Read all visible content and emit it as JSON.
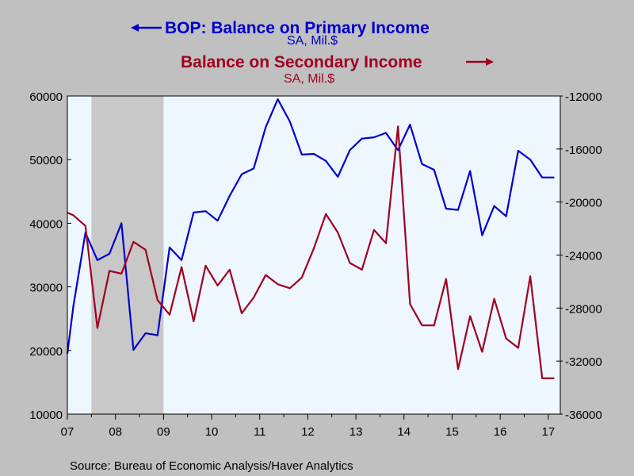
{
  "chart_data": {
    "type": "line",
    "title_left": "BOP: Balance on Primary Income",
    "title_left_units": "SA, Mil.$",
    "title_right": "Balance on Secondary Income",
    "title_right_units": "SA, Mil.$",
    "source": "Source:  Bureau of Economic Analysis/Haver Analytics",
    "x_range": [
      2007.0,
      2017.25
    ],
    "x_tick_labels": [
      "07",
      "08",
      "09",
      "10",
      "11",
      "12",
      "13",
      "14",
      "15",
      "16",
      "17"
    ],
    "x_tick_years": [
      2007,
      2008,
      2009,
      2010,
      2011,
      2012,
      2013,
      2014,
      2015,
      2016,
      2017
    ],
    "recession": {
      "start": 2007.5,
      "end": 2009.0
    },
    "y_left": {
      "min": 10000,
      "max": 60000,
      "ticks": [
        10000,
        20000,
        30000,
        40000,
        50000,
        60000
      ],
      "tick_labels": [
        "10000",
        "20000",
        "30000",
        "40000",
        "50000",
        "60000"
      ]
    },
    "y_right": {
      "min": -36000,
      "max": -12000,
      "ticks": [
        -36000,
        -32000,
        -28000,
        -24000,
        -20000,
        -16000,
        -12000
      ],
      "tick_labels": [
        "-36000",
        "-32000",
        "-28000",
        "-24000",
        "-20000",
        "-16000",
        "-12000"
      ]
    },
    "series": [
      {
        "name": "BOP: Balance on Primary Income",
        "axis": "left",
        "color": "#0000cc",
        "x": [
          2007.0,
          2007.125,
          2007.375,
          2007.625,
          2007.875,
          2008.125,
          2008.375,
          2008.625,
          2008.875,
          2009.125,
          2009.375,
          2009.625,
          2009.875,
          2010.125,
          2010.375,
          2010.625,
          2010.875,
          2011.125,
          2011.375,
          2011.625,
          2011.875,
          2012.125,
          2012.375,
          2012.625,
          2012.875,
          2013.125,
          2013.375,
          2013.625,
          2013.875,
          2014.125,
          2014.375,
          2014.625,
          2014.875,
          2015.125,
          2015.375,
          2015.625,
          2015.875,
          2016.125,
          2016.375,
          2016.625,
          2016.875,
          2017.125
        ],
        "values": [
          19500,
          27000,
          38500,
          34200,
          35200,
          40000,
          20100,
          22700,
          22400,
          36200,
          34200,
          41700,
          41900,
          40400,
          44300,
          47700,
          48600,
          55100,
          59500,
          56000,
          50800,
          50900,
          49800,
          47300,
          51500,
          53300,
          53500,
          54200,
          51500,
          55500,
          49300,
          48400,
          42300,
          42100,
          48200,
          38100,
          42700,
          41100,
          51400,
          50000,
          47200,
          47200
        ]
      },
      {
        "name": "Balance on Secondary Income",
        "axis": "right",
        "color": "#a00020",
        "x": [
          2007.0,
          2007.125,
          2007.375,
          2007.625,
          2007.875,
          2008.125,
          2008.375,
          2008.625,
          2008.875,
          2009.125,
          2009.375,
          2009.625,
          2009.875,
          2010.125,
          2010.375,
          2010.625,
          2010.875,
          2011.125,
          2011.375,
          2011.625,
          2011.875,
          2012.125,
          2012.375,
          2012.625,
          2012.875,
          2013.125,
          2013.375,
          2013.625,
          2013.875,
          2014.125,
          2014.375,
          2014.625,
          2014.875,
          2015.125,
          2015.375,
          2015.625,
          2015.875,
          2016.125,
          2016.375,
          2016.625,
          2016.875,
          2017.125
        ],
        "values": [
          -20800,
          -21000,
          -21800,
          -29500,
          -25200,
          -25400,
          -23000,
          -23600,
          -27400,
          -28500,
          -24900,
          -29000,
          -24800,
          -26300,
          -25100,
          -28400,
          -27200,
          -25500,
          -26200,
          -26500,
          -25700,
          -23500,
          -20900,
          -22300,
          -24600,
          -25100,
          -22100,
          -23100,
          -14300,
          -27700,
          -29300,
          -29300,
          -25800,
          -32600,
          -28600,
          -31300,
          -27300,
          -30300,
          -31000,
          -25600,
          -33300,
          -33300
        ]
      }
    ]
  }
}
